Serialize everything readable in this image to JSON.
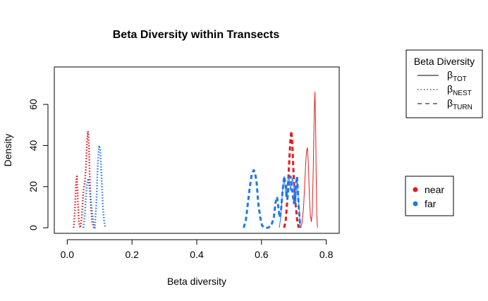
{
  "chart_data": {
    "type": "line",
    "title": "Beta Diversity within Transects",
    "xlabel": "Beta diversity",
    "ylabel": "Density",
    "xlim": [
      -0.04,
      0.84
    ],
    "ylim": [
      -2.7,
      78.2
    ],
    "x_ticks": [
      0.0,
      0.2,
      0.4,
      0.6,
      0.8
    ],
    "x_tick_labels": [
      "0.0",
      "0.2",
      "0.4",
      "0.6",
      "0.8"
    ],
    "y_ticks": [
      0,
      20,
      40,
      60
    ],
    "y_tick_labels": [
      "0",
      "20",
      "40",
      "60"
    ],
    "grid": false,
    "colors": {
      "near": "#e41a1c",
      "far": "#1f78f0"
    },
    "linetype_legend": {
      "title": "Beta Diversity",
      "position": "top-right",
      "items": [
        {
          "base": "β",
          "sub": "TOT",
          "dash": "solid"
        },
        {
          "base": "β",
          "sub": "NEST",
          "dash": "dotted"
        },
        {
          "base": "β",
          "sub": "TURN",
          "dash": "dashed"
        }
      ]
    },
    "color_legend": {
      "position": "right",
      "items": [
        {
          "label": "near",
          "color": "#e41a1c"
        },
        {
          "label": "far",
          "color": "#1f78f0"
        }
      ]
    },
    "series": [
      {
        "group": "near",
        "metric": "TOT",
        "dash": "solid",
        "color": "#e41a1c",
        "x": [
          0.72,
          0.725,
          0.73,
          0.733,
          0.736,
          0.739,
          0.742,
          0.745,
          0.748,
          0.751,
          0.754,
          0.757,
          0.76,
          0.763,
          0.765,
          0.767,
          0.769,
          0.771,
          0.773
        ],
        "y": [
          0,
          2,
          10,
          20,
          30,
          37,
          39,
          30,
          15,
          6,
          3,
          8,
          30,
          58,
          66,
          52,
          25,
          6,
          0
        ]
      },
      {
        "group": "near",
        "metric": "NEST",
        "dash": "dotted",
        "color": "#e41a1c",
        "x": [
          0.02,
          0.024,
          0.027,
          0.03,
          0.033,
          0.036,
          0.04,
          0.045,
          0.05,
          0.054,
          0.058,
          0.061,
          0.064,
          0.067,
          0.07,
          0.073,
          0.077,
          0.082
        ],
        "y": [
          0,
          10,
          22,
          25,
          12,
          3,
          0,
          5,
          18,
          22,
          30,
          42,
          47,
          40,
          22,
          10,
          3,
          0
        ]
      },
      {
        "group": "near",
        "metric": "TURN",
        "dash": "dashed",
        "color": "#e41a1c",
        "x": [
          0.67,
          0.675,
          0.68,
          0.685,
          0.689,
          0.692,
          0.695,
          0.698,
          0.701,
          0.705,
          0.71,
          0.715
        ],
        "y": [
          0,
          4,
          14,
          30,
          42,
          47,
          42,
          30,
          20,
          12,
          4,
          0
        ]
      },
      {
        "group": "far",
        "metric": "TOT",
        "dash": "solid",
        "color": "#1f78f0",
        "x": [
          0.655,
          0.66,
          0.665,
          0.67,
          0.675,
          0.68,
          0.685,
          0.69,
          0.695,
          0.7,
          0.705,
          0.71,
          0.715,
          0.72
        ],
        "y": [
          0,
          6,
          18,
          25,
          15,
          22,
          25,
          18,
          24,
          20,
          10,
          24,
          12,
          0
        ]
      },
      {
        "group": "far",
        "metric": "NEST",
        "dash": "dotted",
        "color": "#1f78f0",
        "x": [
          0.05,
          0.055,
          0.06,
          0.065,
          0.07,
          0.075,
          0.08,
          0.085,
          0.09,
          0.094,
          0.098,
          0.102,
          0.106,
          0.11,
          0.114,
          0.118
        ],
        "y": [
          0,
          8,
          20,
          24,
          18,
          10,
          3,
          0,
          12,
          30,
          40,
          38,
          25,
          10,
          3,
          0
        ]
      },
      {
        "group": "far",
        "metric": "TURN",
        "dash": "dashed",
        "color": "#1f78f0",
        "x": [
          0.545,
          0.552,
          0.558,
          0.564,
          0.57,
          0.576,
          0.58,
          0.585,
          0.59,
          0.596,
          0.602,
          0.61,
          0.62,
          0.63,
          0.638,
          0.643,
          0.648,
          0.652,
          0.656,
          0.66,
          0.665,
          0.67,
          0.675,
          0.68,
          0.685,
          0.69,
          0.695,
          0.7,
          0.705,
          0.71,
          0.715,
          0.72
        ],
        "y": [
          0,
          4,
          12,
          20,
          26,
          28,
          27,
          22,
          12,
          5,
          1,
          0,
          0,
          1,
          5,
          12,
          15,
          10,
          5,
          8,
          18,
          25,
          20,
          14,
          22,
          25,
          18,
          12,
          20,
          25,
          10,
          0
        ]
      }
    ]
  }
}
